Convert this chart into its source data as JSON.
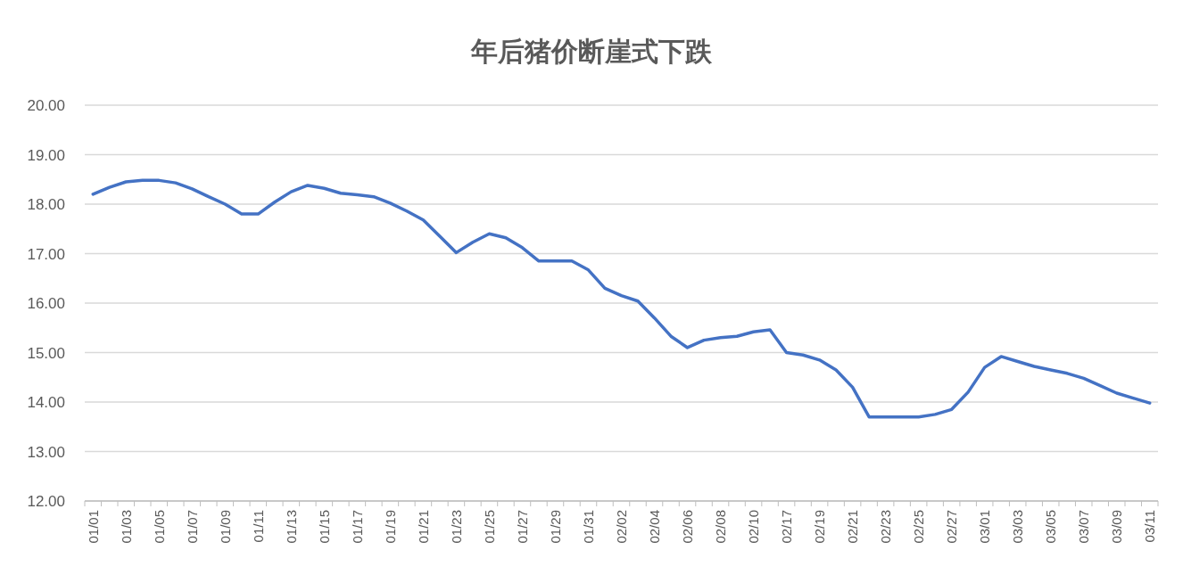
{
  "chart_data": {
    "type": "line",
    "title": "年后猪价断崖式下跌",
    "categories": [
      "01/01",
      null,
      "01/03",
      null,
      "01/05",
      null,
      "01/07",
      null,
      "01/09",
      null,
      "01/11",
      null,
      "01/13",
      null,
      "01/15",
      null,
      "01/17",
      null,
      "01/19",
      null,
      "01/21",
      null,
      "01/23",
      null,
      "01/25",
      null,
      "01/27",
      null,
      "01/29",
      null,
      "01/31",
      null,
      "02/02",
      null,
      "02/04",
      null,
      "02/06",
      null,
      "02/08",
      null,
      "02/10",
      null,
      "02/17",
      null,
      "02/19",
      null,
      "02/21",
      null,
      "02/23",
      null,
      "02/25",
      null,
      "02/27",
      null,
      "03/01",
      null,
      "03/03",
      null,
      "03/05",
      null,
      "03/07",
      null,
      "03/09",
      null,
      "03/11"
    ],
    "series": [
      {
        "color": "#4472c4",
        "values": [
          18.2,
          18.34,
          18.45,
          18.48,
          18.48,
          18.43,
          18.31,
          18.15,
          18.0,
          17.8,
          17.8,
          18.04,
          18.25,
          18.38,
          18.32,
          18.22,
          18.19,
          18.15,
          18.02,
          17.86,
          17.68,
          17.35,
          17.02,
          17.23,
          17.4,
          17.32,
          17.12,
          16.85,
          16.85,
          16.85,
          16.67,
          16.3,
          16.15,
          16.04,
          15.7,
          15.33,
          15.1,
          15.25,
          15.3,
          15.33,
          15.42,
          15.46,
          15.0,
          14.95,
          14.85,
          14.65,
          14.3,
          13.7,
          13.7,
          13.7,
          13.7,
          13.75,
          13.85,
          14.2,
          14.7,
          14.92,
          14.82,
          14.72,
          14.65,
          14.58,
          14.48,
          14.33,
          14.18,
          14.08,
          13.98
        ]
      }
    ],
    "ylim": [
      12,
      20
    ],
    "yticks": [
      {
        "value": 12,
        "label": "12.00"
      },
      {
        "value": 13,
        "label": "13.00"
      },
      {
        "value": 14,
        "label": "14.00"
      },
      {
        "value": 15,
        "label": "15.00"
      },
      {
        "value": 16,
        "label": "16.00"
      },
      {
        "value": 17,
        "label": "17.00"
      },
      {
        "value": 18,
        "label": "18.00"
      },
      {
        "value": 19,
        "label": "19.00"
      },
      {
        "value": 20,
        "label": "20.00"
      }
    ],
    "grid": "y",
    "marker": "none",
    "line_style": "solid"
  }
}
